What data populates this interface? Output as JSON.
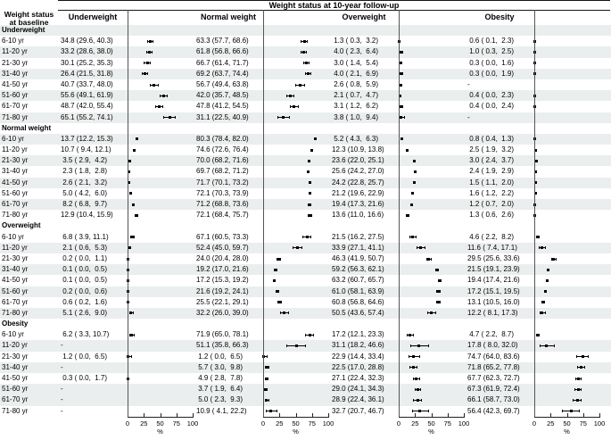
{
  "colors": {
    "stripe": "#ebeeee",
    "marker": "#000000",
    "line": "#222222"
  },
  "chart_data": {
    "type": "table",
    "subtype": "forest-plot-table",
    "title": "Weight status at 10-year follow-up",
    "row_header_line1": "Weight status",
    "row_header_line2": "at baseline",
    "columns": [
      "Underweight",
      "Normal weight",
      "Overweight",
      "Obesity"
    ],
    "empty_cell": "-",
    "value_format": "est (lo, hi)",
    "axis": {
      "ticks": [
        0,
        25,
        50,
        75,
        100
      ],
      "range": [
        0,
        100
      ],
      "label": "%"
    },
    "sections": [
      {
        "label": "Underweight",
        "hdr_bg": "g",
        "rows": [
          {
            "age": "6-10 yr",
            "bg": "w",
            "cells": [
              [
                34.8,
                29.6,
                40.3
              ],
              [
                63.3,
                57.7,
                68.6
              ],
              [
                1.3,
                0.3,
                3.2
              ],
              [
                0.6,
                0.1,
                2.3
              ]
            ]
          },
          {
            "age": "11-20 yr",
            "bg": "g",
            "cells": [
              [
                33.2,
                28.6,
                38.0
              ],
              [
                61.8,
                56.8,
                66.6
              ],
              [
                4.0,
                2.3,
                6.4
              ],
              [
                1.0,
                0.3,
                2.5
              ]
            ]
          },
          {
            "age": "21-30 yr",
            "bg": "w",
            "cells": [
              [
                30.1,
                25.2,
                35.3
              ],
              [
                66.7,
                61.4,
                71.7
              ],
              [
                3.0,
                1.4,
                5.4
              ],
              [
                0.3,
                0.0,
                1.6
              ]
            ]
          },
          {
            "age": "31-40 yr",
            "bg": "g",
            "cells": [
              [
                26.4,
                21.5,
                31.8
              ],
              [
                69.2,
                63.7,
                74.4
              ],
              [
                4.0,
                2.1,
                6.9
              ],
              [
                0.3,
                0.0,
                1.9
              ]
            ]
          },
          {
            "age": "41-50 yr",
            "bg": "w",
            "cells": [
              [
                40.7,
                33.7,
                48.0
              ],
              [
                56.7,
                49.4,
                63.8
              ],
              [
                2.6,
                0.8,
                5.9
              ],
              null
            ]
          },
          {
            "age": "51-60 yr",
            "bg": "g",
            "cells": [
              [
                55.6,
                49.1,
                61.9
              ],
              [
                42.0,
                35.7,
                48.5
              ],
              [
                2.1,
                0.7,
                4.7
              ],
              [
                0.4,
                0.0,
                2.3
              ]
            ]
          },
          {
            "age": "61-70 yr",
            "bg": "w",
            "cells": [
              [
                48.7,
                42.0,
                55.4
              ],
              [
                47.8,
                41.2,
                54.5
              ],
              [
                3.1,
                1.2,
                6.2
              ],
              [
                0.4,
                0.0,
                2.4
              ]
            ]
          },
          {
            "age": "71-80 yr",
            "bg": "g",
            "cells": [
              [
                65.1,
                55.2,
                74.1
              ],
              [
                31.1,
                22.5,
                40.9
              ],
              [
                3.8,
                1.0,
                9.4
              ],
              null
            ]
          }
        ]
      },
      {
        "label": "Normal weight",
        "hdr_bg": "w",
        "rows": [
          {
            "age": "6-10 yr",
            "bg": "g",
            "cells": [
              [
                13.7,
                12.2,
                15.3
              ],
              [
                80.3,
                78.4,
                82.0
              ],
              [
                5.2,
                4.3,
                6.3
              ],
              [
                0.8,
                0.4,
                1.3
              ]
            ]
          },
          {
            "age": "11-20 yr",
            "bg": "w",
            "cells": [
              [
                10.7,
                9.4,
                12.1
              ],
              [
                74.6,
                72.6,
                76.4
              ],
              [
                12.3,
                10.9,
                13.8
              ],
              [
                2.5,
                1.9,
                3.2
              ]
            ]
          },
          {
            "age": "21-30 yr",
            "bg": "g",
            "cells": [
              [
                3.5,
                2.9,
                4.2
              ],
              [
                70.0,
                68.2,
                71.6
              ],
              [
                23.6,
                22.0,
                25.1
              ],
              [
                3.0,
                2.4,
                3.7
              ]
            ]
          },
          {
            "age": "31-40 yr",
            "bg": "w",
            "cells": [
              [
                2.3,
                1.8,
                2.8
              ],
              [
                69.7,
                68.2,
                71.2
              ],
              [
                25.6,
                24.2,
                27.0
              ],
              [
                2.4,
                1.9,
                2.9
              ]
            ]
          },
          {
            "age": "41-50 yr",
            "bg": "g",
            "cells": [
              [
                2.6,
                2.1,
                3.2
              ],
              [
                71.7,
                70.1,
                73.2
              ],
              [
                24.2,
                22.8,
                25.7
              ],
              [
                1.5,
                1.1,
                2.0
              ]
            ]
          },
          {
            "age": "51-60 yr",
            "bg": "w",
            "cells": [
              [
                5.0,
                4.2,
                6.0
              ],
              [
                72.1,
                70.3,
                73.9
              ],
              [
                21.2,
                19.6,
                22.9
              ],
              [
                1.6,
                1.2,
                2.2
              ]
            ]
          },
          {
            "age": "61-70 yr",
            "bg": "g",
            "cells": [
              [
                8.2,
                6.8,
                9.7
              ],
              [
                71.2,
                68.8,
                73.6
              ],
              [
                19.4,
                17.3,
                21.6
              ],
              [
                1.2,
                0.7,
                2.0
              ]
            ]
          },
          {
            "age": "71-80 yr",
            "bg": "w",
            "cells": [
              [
                12.9,
                10.4,
                15.9
              ],
              [
                72.1,
                68.4,
                75.7
              ],
              [
                13.6,
                11.0,
                16.6
              ],
              [
                1.3,
                0.6,
                2.6
              ]
            ]
          }
        ]
      },
      {
        "label": "Overweight",
        "hdr_bg": "w",
        "rows": [
          {
            "age": "6-10 yr",
            "bg": "w",
            "cells": [
              [
                6.8,
                3.9,
                11.1
              ],
              [
                67.1,
                60.5,
                73.3
              ],
              [
                21.5,
                16.2,
                27.5
              ],
              [
                4.6,
                2.2,
                8.2
              ]
            ]
          },
          {
            "age": "11-20 yr",
            "bg": "g",
            "cells": [
              [
                2.1,
                0.6,
                5.3
              ],
              [
                52.4,
                45.0,
                59.7
              ],
              [
                33.9,
                27.1,
                41.1
              ],
              [
                11.6,
                7.4,
                17.1
              ]
            ]
          },
          {
            "age": "21-30 yr",
            "bg": "w",
            "cells": [
              [
                0.2,
                0.0,
                1.1
              ],
              [
                24.0,
                20.4,
                28.0
              ],
              [
                46.3,
                41.9,
                50.7
              ],
              [
                29.5,
                25.6,
                33.6
              ]
            ]
          },
          {
            "age": "31-40 yr",
            "bg": "g",
            "cells": [
              [
                0.1,
                0.0,
                0.5
              ],
              [
                19.2,
                17.0,
                21.6
              ],
              [
                59.2,
                56.3,
                62.1
              ],
              [
                21.5,
                19.1,
                23.9
              ]
            ]
          },
          {
            "age": "41-50 yr",
            "bg": "w",
            "cells": [
              [
                0.1,
                0.0,
                0.5
              ],
              [
                17.2,
                15.3,
                19.2
              ],
              [
                63.2,
                60.7,
                65.7
              ],
              [
                19.4,
                17.4,
                21.6
              ]
            ]
          },
          {
            "age": "51-60 yr",
            "bg": "g",
            "cells": [
              [
                0.2,
                0.0,
                0.6
              ],
              [
                21.6,
                19.2,
                24.1
              ],
              [
                61.0,
                58.1,
                63.9
              ],
              [
                17.2,
                15.1,
                19.5
              ]
            ]
          },
          {
            "age": "61-70 yr",
            "bg": "w",
            "cells": [
              [
                0.6,
                0.2,
                1.6
              ],
              [
                25.5,
                22.1,
                29.1
              ],
              [
                60.8,
                56.8,
                64.6
              ],
              [
                13.1,
                10.5,
                16.0
              ]
            ]
          },
          {
            "age": "71-80 yr",
            "bg": "g",
            "cells": [
              [
                5.1,
                2.6,
                9.0
              ],
              [
                32.2,
                26.0,
                39.0
              ],
              [
                50.5,
                43.6,
                57.4
              ],
              [
                12.2,
                8.1,
                17.3
              ]
            ]
          }
        ]
      },
      {
        "label": "Obesity",
        "hdr_bg": "w",
        "rows": [
          {
            "age": "6-10 yr",
            "bg": "w",
            "cells": [
              [
                6.2,
                3.3,
                10.7
              ],
              [
                71.9,
                65.0,
                78.1
              ],
              [
                17.2,
                12.1,
                23.3
              ],
              [
                4.7,
                2.2,
                8.7
              ]
            ]
          },
          {
            "age": "11-20 yr",
            "bg": "g",
            "cells": [
              null,
              [
                51.1,
                35.8,
                66.3
              ],
              [
                31.1,
                18.2,
                46.6
              ],
              [
                17.8,
                8.0,
                32.0
              ]
            ]
          },
          {
            "age": "21-30 yr",
            "bg": "w",
            "cells": [
              [
                1.2,
                0.0,
                6.5
              ],
              [
                1.2,
                0.0,
                6.5
              ],
              [
                22.9,
                14.4,
                33.4
              ],
              [
                74.7,
                64.0,
                83.6
              ]
            ]
          },
          {
            "age": "31-40 yr",
            "bg": "g",
            "cells": [
              null,
              [
                5.7,
                3.0,
                9.8
              ],
              [
                22.5,
                17.0,
                28.8
              ],
              [
                71.8,
                65.2,
                77.8
              ]
            ]
          },
          {
            "age": "41-50 yr",
            "bg": "w",
            "cells": [
              [
                0.3,
                0.0,
                1.7
              ],
              [
                4.9,
                2.8,
                7.8
              ],
              [
                27.1,
                22.4,
                32.3
              ],
              [
                67.7,
                62.3,
                72.7
              ]
            ]
          },
          {
            "age": "51-60 yr",
            "bg": "g",
            "cells": [
              null,
              [
                3.7,
                1.9,
                6.4
              ],
              [
                29.0,
                24.1,
                34.3
              ],
              [
                67.3,
                61.9,
                72.4
              ]
            ]
          },
          {
            "age": "61-70 yr",
            "bg": "g",
            "cells": [
              null,
              [
                5.0,
                2.3,
                9.3
              ],
              [
                28.9,
                22.4,
                36.1
              ],
              [
                66.1,
                58.7,
                73.0
              ]
            ]
          },
          {
            "age": "71-80 yr",
            "bg": "w",
            "cells": [
              null,
              [
                10.9,
                4.1,
                22.2
              ],
              [
                32.7,
                20.7,
                46.7
              ],
              [
                56.4,
                42.3,
                69.7
              ]
            ]
          }
        ]
      }
    ]
  }
}
